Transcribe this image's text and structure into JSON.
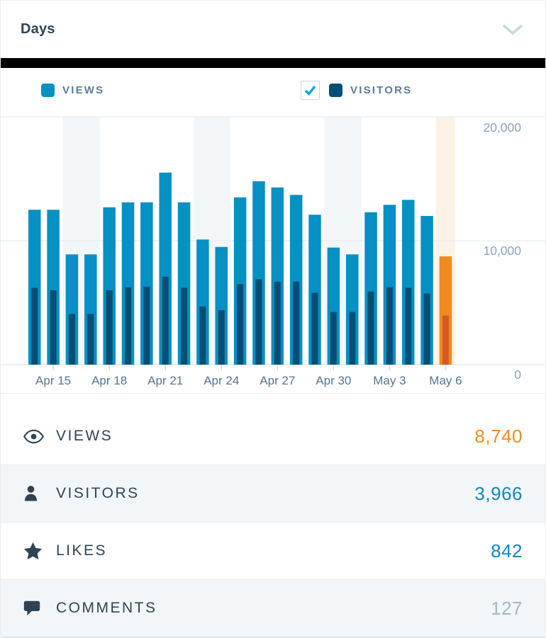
{
  "header": {
    "title": "Days"
  },
  "legend": {
    "views": {
      "label": "VIEWS",
      "color": "#0790c4",
      "checked": false
    },
    "visitors": {
      "label": "VISITORS",
      "color": "#064e74",
      "checked": true,
      "check_color": "#00aadc"
    }
  },
  "chart_data": {
    "type": "bar",
    "title": "Views and Visitors per day",
    "x": [
      "Apr 14",
      "Apr 15",
      "Apr 16",
      "Apr 17",
      "Apr 18",
      "Apr 19",
      "Apr 20",
      "Apr 21",
      "Apr 22",
      "Apr 23",
      "Apr 24",
      "Apr 25",
      "Apr 26",
      "Apr 27",
      "Apr 28",
      "Apr 29",
      "Apr 30",
      "May 1",
      "May 2",
      "May 3",
      "May 4",
      "May 5",
      "May 6"
    ],
    "series": [
      {
        "name": "Views",
        "color": "#0790c4",
        "selected_color": "#ee8b21",
        "values": [
          12500,
          12500,
          8900,
          8900,
          12700,
          13100,
          13100,
          15500,
          13100,
          10100,
          9500,
          13500,
          14800,
          14300,
          13700,
          12100,
          9450,
          8900,
          12300,
          12900,
          13300,
          12000,
          8740
        ]
      },
      {
        "name": "Visitors",
        "color": "#064e74",
        "selected_color": "#d55a26",
        "values": [
          6200,
          6000,
          4100,
          4100,
          6000,
          6250,
          6300,
          7100,
          6200,
          4700,
          4400,
          6500,
          6900,
          6700,
          6700,
          5800,
          4250,
          4250,
          5900,
          6250,
          6200,
          5750,
          3966
        ]
      }
    ],
    "x_tick_labels": [
      "Apr 15",
      "Apr 18",
      "Apr 21",
      "Apr 24",
      "Apr 27",
      "Apr 30",
      "May 3",
      "May 6"
    ],
    "label_start_index": 1,
    "label_every": 3,
    "y_ticks": [
      "20,000",
      "10,000",
      "0"
    ],
    "ylim": [
      0,
      20000
    ],
    "grid": true,
    "legend_position": "top",
    "selected_index": 22,
    "weekend_pair_starts": [
      2,
      9,
      16
    ],
    "colors": {
      "weekend_bg": "#f2f6f8",
      "selected_bg": "#fdf2e5",
      "gridline": "#e9eff3",
      "baseline": "#e3eaf0",
      "tick": "#c9d6e0",
      "x_label": "#54738f",
      "y_label": "#87a3bd"
    }
  },
  "summary": {
    "rows": [
      {
        "icon": "eye-icon",
        "label": "VIEWS",
        "value": "8,740",
        "value_color": "#f08b24"
      },
      {
        "icon": "user-icon",
        "label": "VISITORS",
        "value": "3,966",
        "value_color": "#0e87be"
      },
      {
        "icon": "star-icon",
        "label": "LIKES",
        "value": "842",
        "value_color": "#0e87be"
      },
      {
        "icon": "comment-icon",
        "label": "COMMENTS",
        "value": "127",
        "value_color": "#a3b8c7"
      }
    ]
  }
}
